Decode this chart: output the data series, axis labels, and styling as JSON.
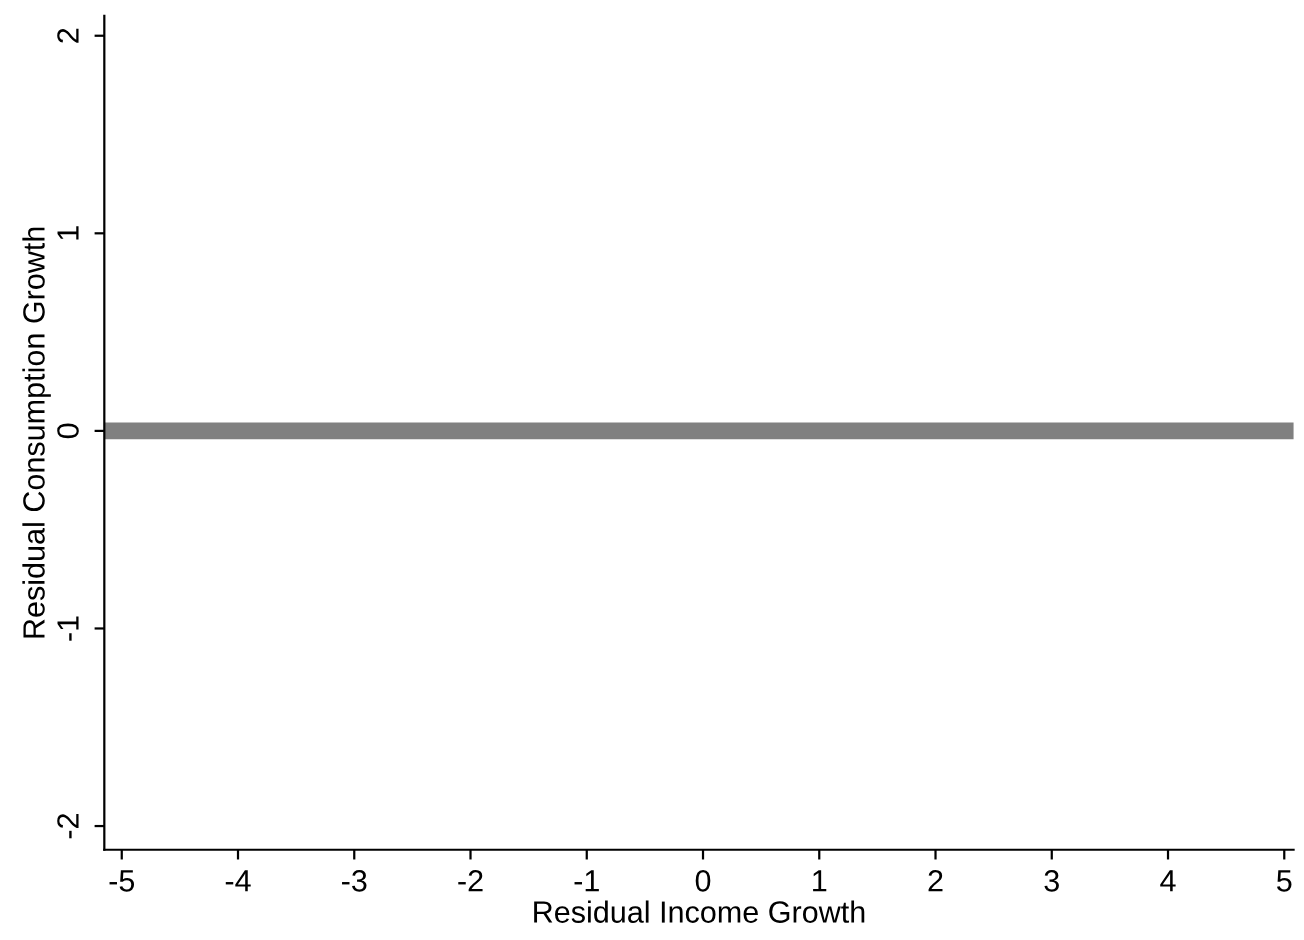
{
  "chart_data": {
    "type": "line",
    "xlabel": "Residual Income Growth",
    "ylabel": "Residual Consumption Growth",
    "x": [
      -5.15,
      5.08
    ],
    "series": [
      {
        "color": "#808080",
        "values": [
          0,
          0
        ]
      }
    ],
    "xlim": [
      -5.15,
      5.08
    ],
    "ylim": [
      -2.12,
      2.1
    ],
    "xticks": [
      -5,
      -4,
      -3,
      -2,
      -1,
      0,
      1,
      2,
      3,
      4,
      5
    ],
    "yticks": [
      -2,
      -1,
      0,
      1,
      2
    ],
    "grid": false,
    "legend": false,
    "marker": "none",
    "line_style": "solid"
  }
}
